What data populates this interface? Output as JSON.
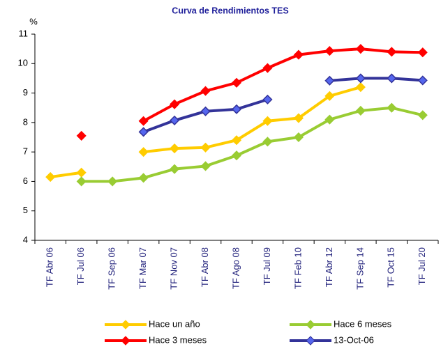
{
  "chart_data": {
    "type": "line",
    "title": "Curva de Rendimientos TES",
    "y_label": "%",
    "categories": [
      "TF Abr 06",
      "TF Jul 06",
      "TF Sep 06",
      "TF Mar 07",
      "TF Nov 07",
      "TF Abr 08",
      "TF Ago 08",
      "TF Jul 09",
      "TF Feb 10",
      "TF Abr 12",
      "TF Sep 14",
      "TF Oct 15",
      "TF Jul 20"
    ],
    "series": [
      {
        "name": "Hace un año",
        "color": "#ffcc00",
        "values": [
          6.15,
          6.3,
          null,
          7.0,
          7.12,
          7.15,
          7.4,
          8.05,
          8.15,
          8.9,
          9.2,
          null,
          null
        ]
      },
      {
        "name": "Hace 6 meses",
        "color": "#99cc33",
        "values": [
          null,
          6.0,
          6.0,
          6.12,
          6.42,
          6.52,
          6.88,
          7.35,
          7.5,
          8.1,
          8.4,
          8.5,
          8.25
        ]
      },
      {
        "name": "Hace 3 meses",
        "color": "#ff0000",
        "values": [
          null,
          7.55,
          null,
          8.05,
          8.62,
          9.07,
          9.35,
          9.85,
          10.3,
          10.43,
          10.5,
          10.4,
          10.38
        ]
      },
      {
        "name": "13-Oct-06",
        "color": "#333399",
        "values": [
          null,
          null,
          null,
          7.68,
          8.07,
          8.38,
          8.45,
          8.78,
          null,
          9.42,
          9.5,
          9.5,
          9.43
        ]
      }
    ],
    "ylim": [
      4,
      11
    ],
    "yticks": [
      4,
      5,
      6,
      7,
      8,
      9,
      10,
      11
    ],
    "grid": false,
    "legend": "bottom"
  }
}
